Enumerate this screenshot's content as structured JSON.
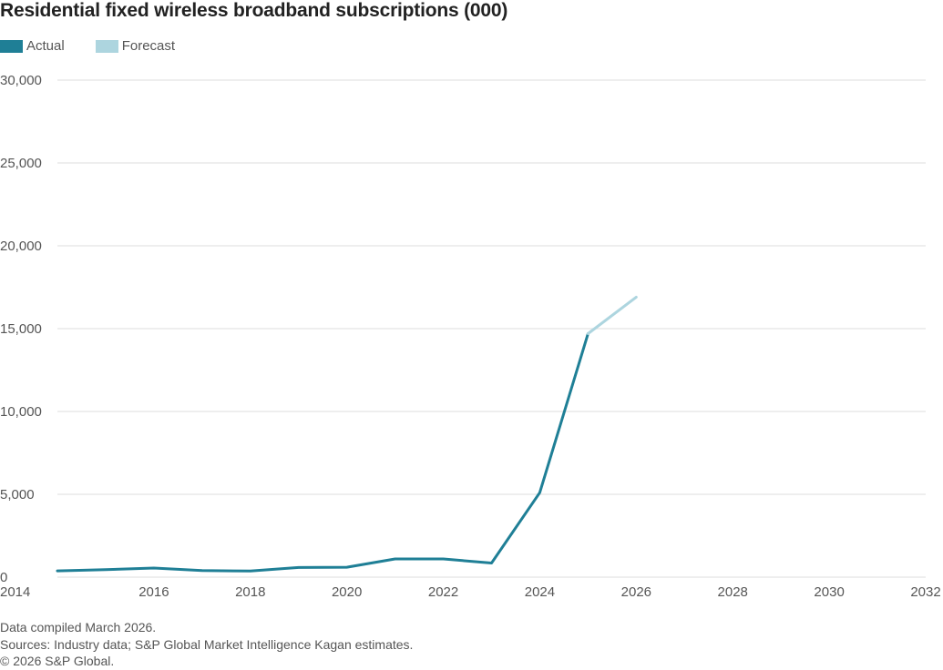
{
  "chart_data": {
    "type": "line",
    "title": "Residential fixed wireless broadband subscriptions (000)",
    "xlabel": "",
    "ylabel": "",
    "xlim": [
      2014,
      2032
    ],
    "ylim": [
      0,
      30000
    ],
    "grid": true,
    "legend_position": "top-left",
    "x_ticks": [
      2014,
      2016,
      2018,
      2020,
      2022,
      2024,
      2026,
      2028,
      2030,
      2032
    ],
    "x_tick_labels": [
      "2014",
      "2016",
      "2018",
      "2020",
      "2022",
      "2024",
      "2026",
      "2028",
      "2030",
      "2032"
    ],
    "y_ticks": [
      0,
      5000,
      10000,
      15000,
      20000,
      25000,
      30000
    ],
    "y_tick_labels": [
      "0",
      "5,000",
      "10,000",
      "15,000",
      "20,000",
      "25,000",
      "30,000"
    ],
    "series": [
      {
        "name": "Actual",
        "color": "#1f7f96",
        "x": [
          2014,
          2015,
          2016,
          2017,
          2018,
          2019,
          2020,
          2021,
          2022,
          2023,
          2024,
          2025
        ],
        "values": [
          380,
          450,
          550,
          400,
          370,
          580,
          600,
          1100,
          1100,
          850,
          5100,
          14700
        ]
      },
      {
        "name": "Forecast",
        "color": "#add5df",
        "x": [
          2025,
          2026
        ],
        "values": [
          14700,
          16900
        ]
      }
    ]
  },
  "legend": [
    {
      "label": "Actual",
      "color": "#1f7f96"
    },
    {
      "label": "Forecast",
      "color": "#add5df"
    }
  ],
  "footer": {
    "line1": "Data compiled March 2026.",
    "line2": "Sources: Industry data; S&P Global Market Intelligence Kagan estimates.",
    "line3": "© 2026 S&P Global."
  }
}
